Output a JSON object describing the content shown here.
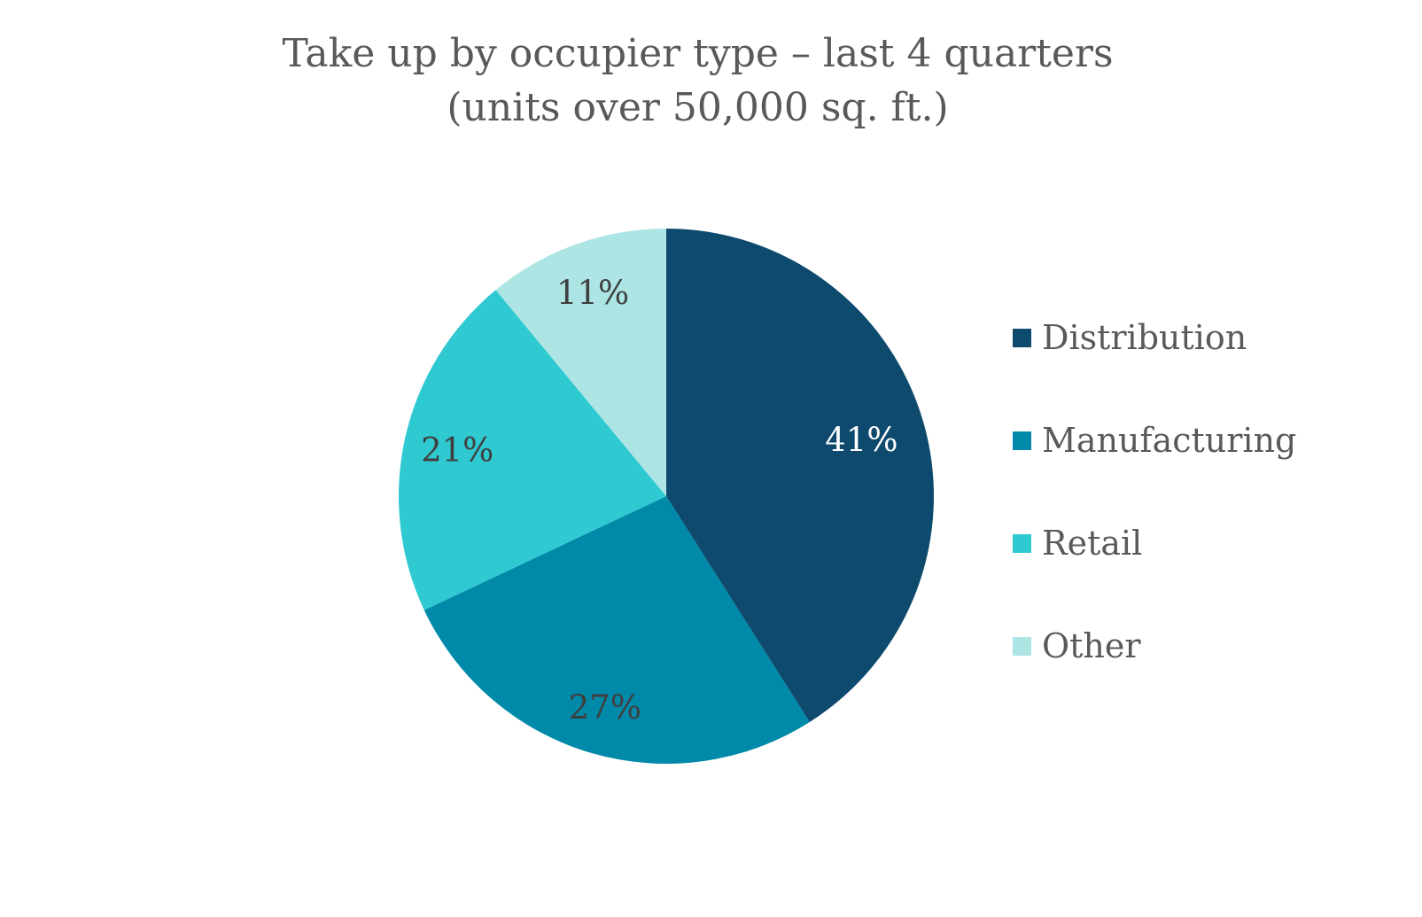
{
  "chart_data": {
    "type": "pie",
    "title": "Take up by occupier type – last 4 quarters",
    "subtitle": "(units over 50,000 sq. ft.)",
    "legend_position": "right",
    "start_angle_deg": 0,
    "direction": "clockwise",
    "grid": false,
    "categories": [
      "Distribution",
      "Manufacturing",
      "Retail",
      "Other"
    ],
    "values": [
      41,
      27,
      21,
      11
    ],
    "unit": "percent",
    "slices": [
      {
        "label": "Distribution",
        "value": 41,
        "data_label": "41%",
        "color": "#0D4A6D",
        "data_label_color": "#FFFFFF"
      },
      {
        "label": "Manufacturing",
        "value": 27,
        "data_label": "27%",
        "color": "#0089A8",
        "data_label_color": "#3F3F3F"
      },
      {
        "label": "Retail",
        "value": 21,
        "data_label": "21%",
        "color": "#2FC9D1",
        "data_label_color": "#3F3F3F"
      },
      {
        "label": "Other",
        "value": 11,
        "data_label": "11%",
        "color": "#ACE5E4",
        "data_label_color": "#3F3F3F"
      }
    ],
    "text_colors": {
      "title": "#595959",
      "legend": "#595959"
    }
  }
}
